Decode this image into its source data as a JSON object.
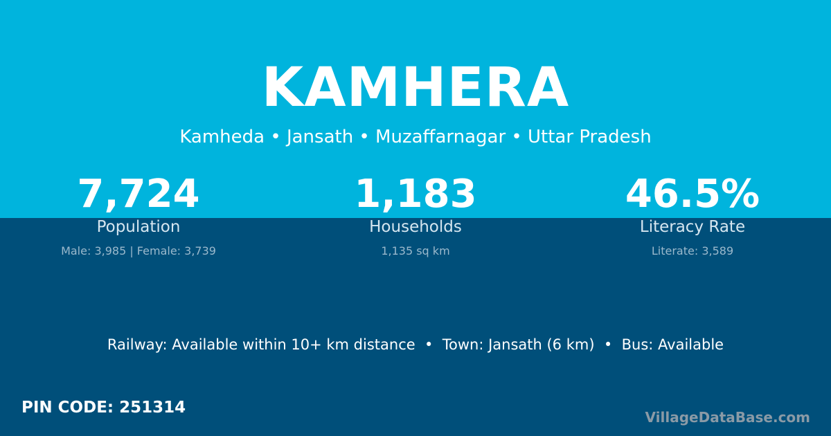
{
  "colors": {
    "top": "#00b4dd",
    "bottom": "#004f7a"
  },
  "title": "KAMHERA",
  "subtitle": "Kamheda • Jansath • Muzaffarnagar • Uttar Pradesh",
  "stats": [
    {
      "value": "7,724",
      "label": "Population",
      "detail": "Male: 3,985 | Female: 3,739"
    },
    {
      "value": "1,183",
      "label": "Households",
      "detail": "1,135 sq km"
    },
    {
      "value": "46.5%",
      "label": "Literacy Rate",
      "detail": "Literate: 3,589"
    }
  ],
  "info": "Railway: Available within 10+ km distance  •  Town: Jansath (6 km)  •  Bus: Available",
  "pin": "PIN CODE: 251314",
  "brand": "VillageDataBase.com"
}
